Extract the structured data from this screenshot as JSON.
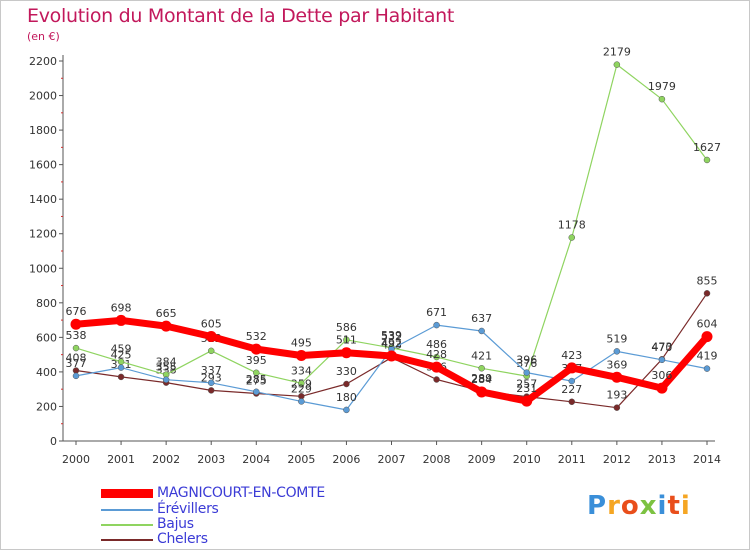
{
  "title": "Evolution du Montant de la Dette par Habitant",
  "unit": "(en €)",
  "logo": "Proxiti",
  "chart_data": {
    "type": "line",
    "title": "Evolution du Montant de la Dette par Habitant",
    "ylabel": "(en €)",
    "xlabel": "",
    "ylim": [
      0,
      2200
    ],
    "yticks": [
      0,
      200,
      400,
      600,
      800,
      1000,
      1200,
      1400,
      1600,
      1800,
      2000,
      2200
    ],
    "x": [
      "2000",
      "2001",
      "2002",
      "2003",
      "2004",
      "2005",
      "2006",
      "2007",
      "2008",
      "2009",
      "2010",
      "2011",
      "2012",
      "2013",
      "2014"
    ],
    "grid": false,
    "legend": "bottom-left",
    "series": [
      {
        "name": "Chelers",
        "color": "#7a2a2a",
        "values": [
          408,
          371,
          338,
          293,
          275,
          259,
          330,
          483,
          356,
          289,
          257,
          227,
          193,
          473,
          855
        ]
      },
      {
        "name": "Bajus",
        "color": "#8fd460",
        "values": [
          538,
          459,
          384,
          522,
          395,
          334,
          586,
          539,
          486,
          421,
          376,
          1178,
          2179,
          1979,
          1627
        ]
      },
      {
        "name": "Érévillers",
        "color": "#5b9bd5",
        "values": [
          377,
          425,
          355,
          337,
          285,
          229,
          180,
          532,
          671,
          637,
          396,
          347,
          519,
          470,
          419
        ]
      },
      {
        "name": "MAGNICOURT-EN-COMTE",
        "color": "#ff0000",
        "values": [
          676,
          698,
          665,
          605,
          532,
          495,
          511,
          492,
          428,
          284,
          231,
          423,
          369,
          306,
          604
        ]
      }
    ]
  },
  "legend_items": [
    {
      "name": "MAGNICOURT-EN-COMTE",
      "color": "#ff0000"
    },
    {
      "name": "Érévillers",
      "color": "#5b9bd5"
    },
    {
      "name": "Bajus",
      "color": "#8fd460"
    },
    {
      "name": "Chelers",
      "color": "#7a2a2a"
    }
  ]
}
